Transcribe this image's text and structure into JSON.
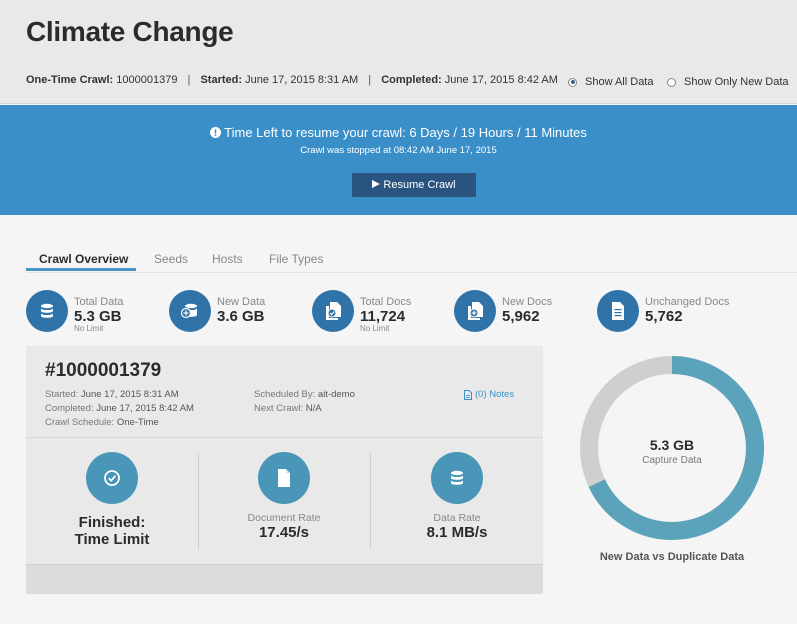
{
  "header": {
    "title": "Climate Change",
    "crawl_type_label": "One-Time Crawl:",
    "crawl_id": "1000001379",
    "started_label": "Started:",
    "started_value": "June 17, 2015 8:31 AM",
    "completed_label": "Completed:",
    "completed_value": "June 17, 2015 8:42 AM",
    "separator": "|",
    "filter_options": [
      {
        "label": "Show All Data",
        "checked": true
      },
      {
        "label": "Show Only New Data",
        "checked": false
      }
    ]
  },
  "banner": {
    "message": "Time Left to resume your crawl: 6 Days / 19 Hours / 11 Minutes",
    "info_icon": "info-circle-icon",
    "sub_message": "Crawl was stopped at 08:42 AM June 17, 2015",
    "resume_button": "Resume Crawl",
    "resume_icon": "play-icon"
  },
  "tabs": [
    {
      "label": "Crawl Overview",
      "active": true
    },
    {
      "label": "Seeds",
      "active": false
    },
    {
      "label": "Hosts",
      "active": false
    },
    {
      "label": "File Types",
      "active": false
    }
  ],
  "stats": [
    {
      "label": "Total Data",
      "value": "5.3 GB",
      "sub": "No Limit",
      "icon": "database-icon"
    },
    {
      "label": "New Data",
      "value": "3.6 GB",
      "sub": "",
      "icon": "new-data-icon"
    },
    {
      "label": "Total Docs",
      "value": "11,724",
      "sub": "No Limit",
      "icon": "docs-check-icon"
    },
    {
      "label": "New Docs",
      "value": "5,962",
      "sub": "",
      "icon": "new-docs-icon"
    },
    {
      "label": "Unchanged Docs",
      "value": "5,762",
      "sub": "",
      "icon": "document-icon"
    }
  ],
  "panel": {
    "id": "#1000001379",
    "started_label": "Started:",
    "started_value": "June 17, 2015 8:31 AM",
    "completed_label": "Completed:",
    "completed_value": "June 17, 2015 8:42 AM",
    "schedule_label": "Crawl Schedule:",
    "schedule_value": "One-Time",
    "scheduled_by_label": "Scheduled By:",
    "scheduled_by_value": "ait-demo",
    "next_crawl_label": "Next Crawl:",
    "next_crawl_value": "N/A",
    "notes": "(0) Notes",
    "status_line1": "Finished:",
    "status_line2": "Time Limit",
    "doc_rate_label": "Document Rate",
    "doc_rate_value": "17.45/s",
    "data_rate_label": "Data Rate",
    "data_rate_value": "8.1 MB/s"
  },
  "donut": {
    "value": "5.3 GB",
    "sub": "Capture Data",
    "caption": "New Data vs Duplicate Data",
    "new_fraction": 0.68,
    "new_color": "#5aa3bb",
    "duplicate_color": "#cfcfcf"
  },
  "colors": {
    "banner": "#3a8fc9",
    "resume_button": "#28547f",
    "stat_icon": "#2f73a8",
    "metric_icon": "#4a96b8"
  }
}
